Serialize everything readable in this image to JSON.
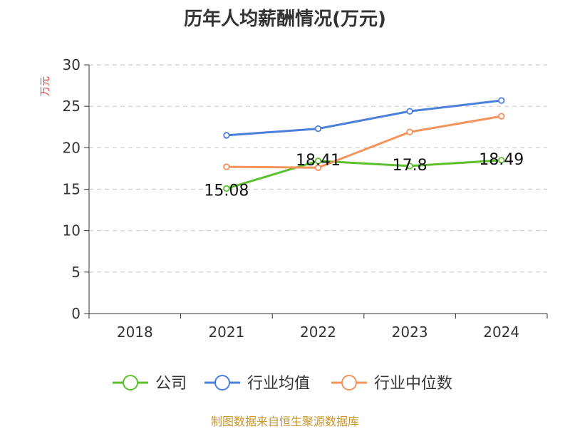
{
  "chart_data": {
    "type": "line",
    "title": "历年人均薪酬情况(万元)",
    "ylabel": "万元",
    "xlabel": "",
    "categories": [
      "2018",
      "2021",
      "2022",
      "2023",
      "2024"
    ],
    "ylim": [
      0,
      30
    ],
    "yticks": [
      0,
      5,
      10,
      15,
      20,
      25,
      30
    ],
    "grid": true,
    "legend_position": "bottom",
    "series": [
      {
        "name": "公司",
        "color": "#5cc02a",
        "values": [
          null,
          15.08,
          18.41,
          17.8,
          18.49
        ],
        "labels": [
          "",
          "15.08",
          "18.41",
          "17.8",
          "18.49"
        ]
      },
      {
        "name": "行业均值",
        "color": "#4a7fdc",
        "values": [
          null,
          21.5,
          22.3,
          24.4,
          25.7
        ]
      },
      {
        "name": "行业中位数",
        "color": "#f5935a",
        "values": [
          null,
          17.7,
          17.6,
          21.9,
          23.8
        ]
      }
    ]
  },
  "footer": "制图数据来自恒生聚源数据库"
}
